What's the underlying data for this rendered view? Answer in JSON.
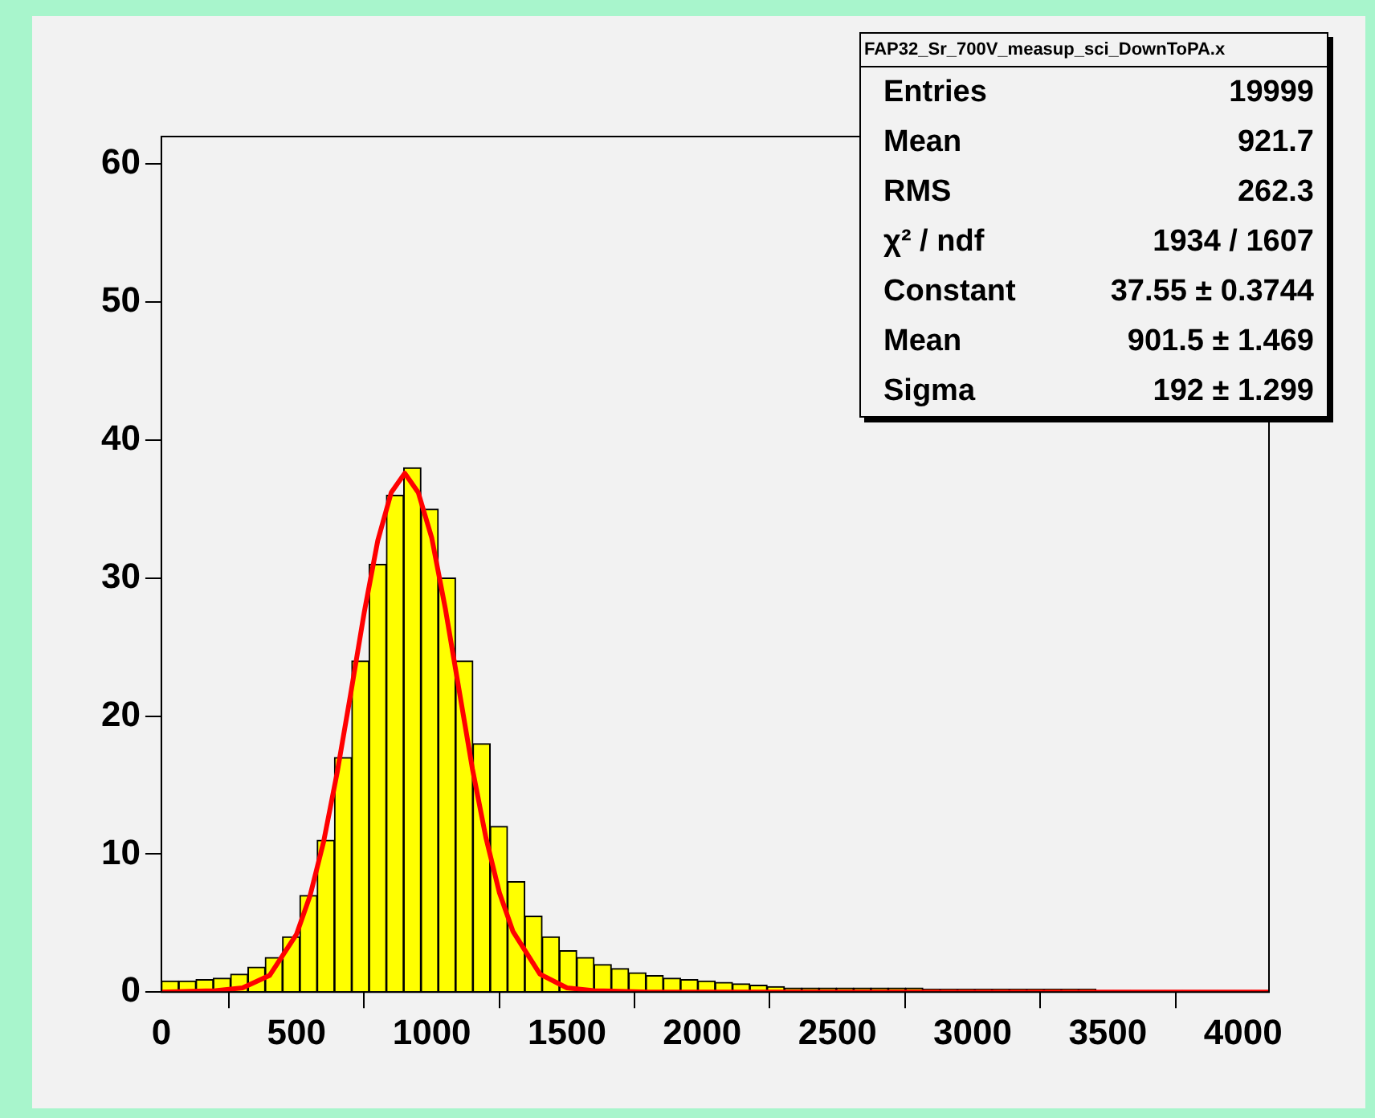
{
  "chart_data": {
    "type": "histogram",
    "title": "FAP32_Sr_700V_measup_sci_DownToPA.x",
    "bins": [
      0,
      64,
      128,
      192,
      256,
      320,
      384,
      448,
      512,
      576,
      640,
      704,
      768,
      832,
      896,
      960,
      1024,
      1088,
      1152,
      1216,
      1280,
      1344,
      1408,
      1472,
      1536,
      1600,
      1664,
      1728,
      1792,
      1856,
      1920,
      1984,
      2048,
      2112,
      2176,
      2240,
      2304,
      2368,
      2432,
      2496,
      2560,
      2624,
      2688,
      2752,
      2816,
      2880,
      2944,
      3008,
      3072,
      3136,
      3200,
      3264,
      3328,
      3392,
      3456,
      3520,
      3584,
      3648,
      3712,
      3776,
      3840,
      3904,
      3968,
      4032,
      4096
    ],
    "values": [
      0.8,
      0.8,
      0.9,
      1,
      1.3,
      1.8,
      2.5,
      4,
      7,
      11,
      17,
      24,
      31,
      36,
      38,
      35,
      30,
      24,
      18,
      12,
      8,
      5.5,
      4,
      3,
      2.5,
      2,
      1.7,
      1.4,
      1.2,
      1,
      0.9,
      0.8,
      0.7,
      0.6,
      0.5,
      0.4,
      0.3,
      0.3,
      0.3,
      0.3,
      0.3,
      0.3,
      0.3,
      0.3,
      0.2,
      0.2,
      0.2,
      0.2,
      0.2,
      0.2,
      0.2,
      0.2,
      0.2,
      0.2,
      0.1,
      0.1,
      0.1,
      0.1,
      0.1,
      0.1,
      0.1,
      0.1,
      0.1,
      0.1
    ],
    "color": "#ffff00",
    "series": [
      {
        "type": "line",
        "color": "#ff0000",
        "x": [
          0,
          200,
          300,
          400,
          500,
          550,
          600,
          650,
          700,
          750,
          800,
          850,
          900,
          950,
          1000,
          1050,
          1100,
          1150,
          1200,
          1250,
          1300,
          1400,
          1500,
          1600,
          1800,
          4096
        ],
        "values": [
          0,
          0.1,
          0.3,
          1.2,
          4.2,
          7,
          10.9,
          15.9,
          21.6,
          27.5,
          32.7,
          36.2,
          37.6,
          36.2,
          32.9,
          27.8,
          22,
          16.2,
          11.2,
          7.2,
          4.4,
          1.3,
          0.3,
          0.1,
          0,
          0
        ]
      }
    ],
    "xlim": [
      0,
      4096
    ],
    "xticks": [
      0,
      500,
      1000,
      1500,
      2000,
      2500,
      3000,
      3500,
      4000
    ],
    "ylim": [
      0,
      62
    ],
    "yticks": [
      0,
      10,
      20,
      30,
      40,
      50,
      60
    ],
    "grid": false,
    "legend": false,
    "annotations": [
      "Entries  19999",
      "Mean  921.7",
      "RMS  262.3",
      "χ² / ndf  1934 / 1607",
      "Constant  37.55 ± 0.3744",
      "Mean  901.5 ± 1.469",
      "Sigma  192 ± 1.299"
    ]
  }
}
